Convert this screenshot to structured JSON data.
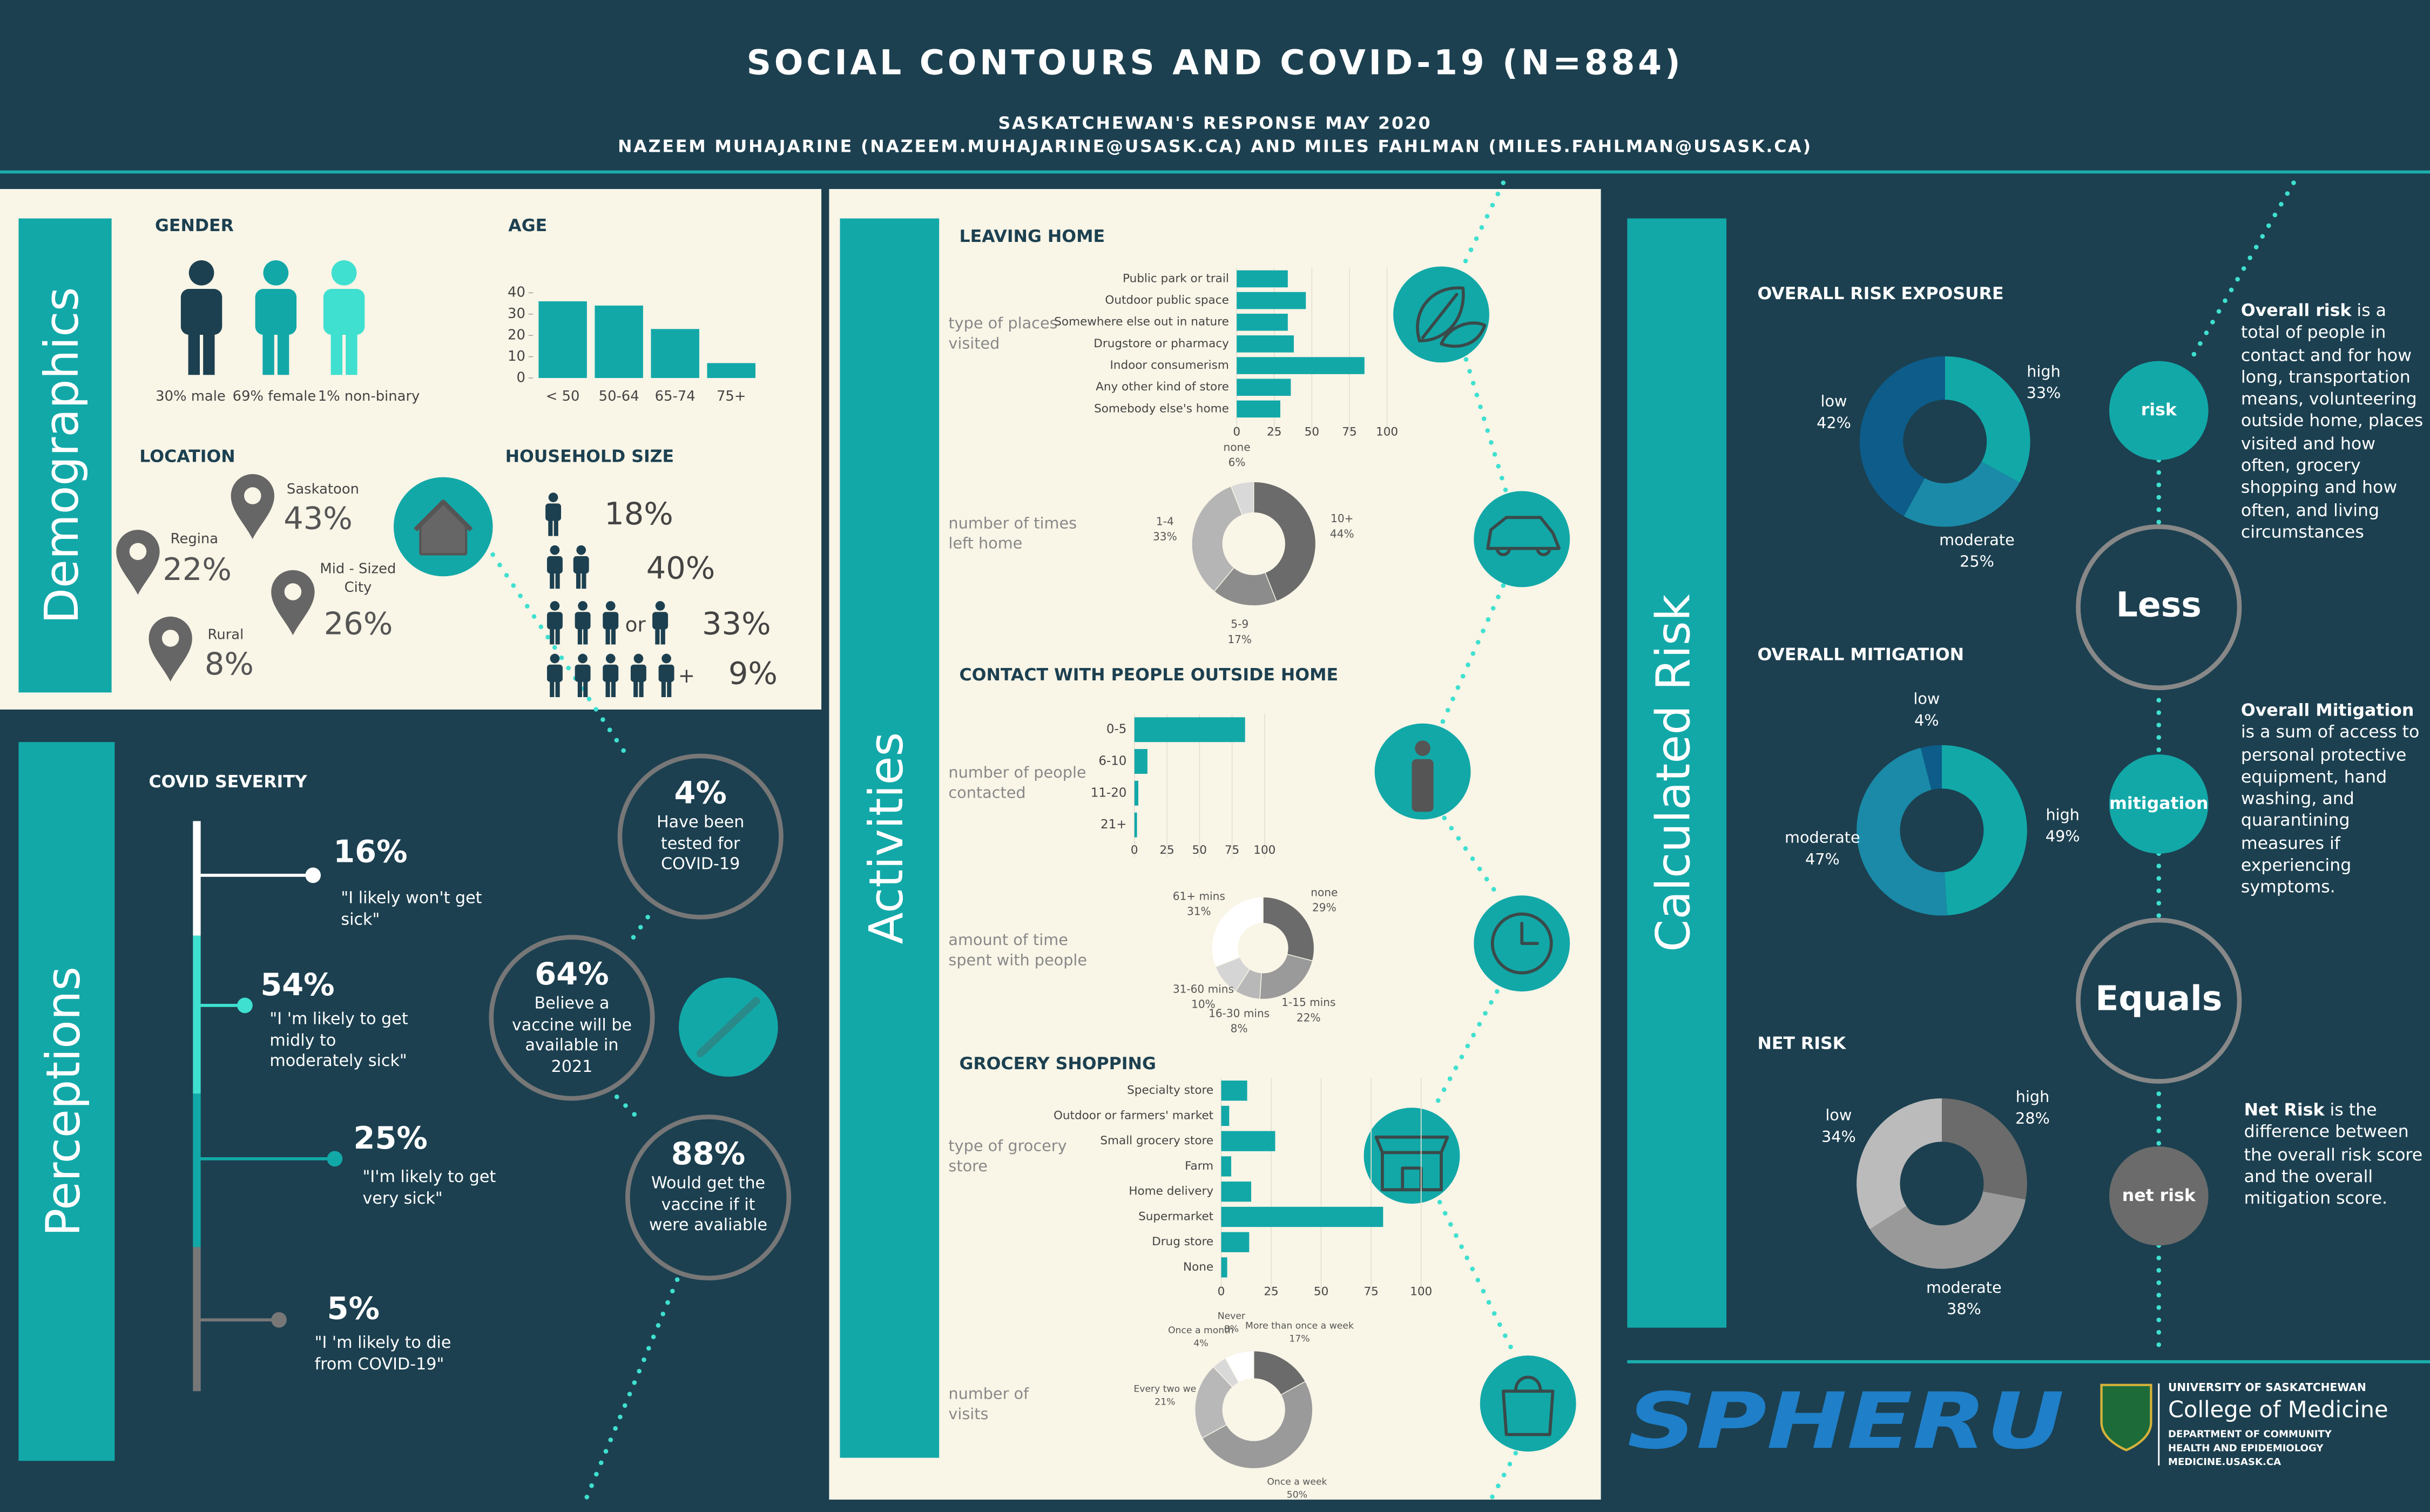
{
  "header": {
    "title": "SOCIAL CONTOURS AND COVID-19 (N=884)",
    "subtitle": "SASKATCHEWAN'S RESPONSE MAY 2020",
    "authors": "NAZEEM MUHAJARINE (NAZEEM.MUHAJARINE@USASK.CA) AND MILES FAHLMAN (MILES.FAHLMAN@USASK.CA)"
  },
  "demographics": {
    "label": "Demographics",
    "gender": {
      "heading": "GENDER",
      "items": [
        "30% male",
        "69% female",
        "1% non-binary"
      ]
    },
    "location": {
      "heading": "LOCATION",
      "items": [
        {
          "name": "Saskatoon",
          "value": "43%"
        },
        {
          "name": "Regina",
          "value": "22%"
        },
        {
          "name": "Mid - Sized City",
          "value": "26%"
        },
        {
          "name": "Rural",
          "value": "8%"
        }
      ]
    },
    "household": {
      "heading": "HOUSEHOLD SIZE",
      "connector": "or",
      "plus": "+",
      "items": [
        "18%",
        "40%",
        "33%",
        "9%"
      ]
    }
  },
  "perceptions": {
    "label": "Perceptions",
    "heading": "COVID SEVERITY",
    "severity": [
      {
        "value": "16%",
        "quote": "\"I likely won't get sick\""
      },
      {
        "value": "54%",
        "quote": "\"I 'm likely to get midly to moderately sick\""
      },
      {
        "value": "25%",
        "quote": "\"I'm likely to get very sick\""
      },
      {
        "value": "5%",
        "quote": "\"I 'm likely to die from COVID-19\""
      }
    ],
    "facts": [
      {
        "value": "4%",
        "text": "Have been tested for COVID-19"
      },
      {
        "value": "64%",
        "text": "Believe a vaccine will be available in 2021"
      },
      {
        "value": "88%",
        "text": "Would get the vaccine if it were avaliable"
      }
    ]
  },
  "activities": {
    "label": "Activities",
    "sections": [
      "LEAVING HOME",
      "CONTACT WITH PEOPLE OUTSIDE HOME",
      "GROCERY SHOPPING"
    ]
  },
  "risk": {
    "label": "Calculated Risk",
    "equation": [
      "risk",
      "Less",
      "mitigation",
      "Equals",
      "net risk"
    ],
    "notes": [
      {
        "term": "Overall risk",
        "text": " is a total of people in contact and for how long, transportation means, volunteering outside home, places visited and how often, grocery shopping and how often, and living circumstances"
      },
      {
        "term": "Overall Mitigation",
        "text": " is a sum of access to personal protective equipment, hand washing, and quarantining measures if experiencing symptoms."
      },
      {
        "term": "Net Risk",
        "text": " is the difference between the overall risk score and the overall mitigation score."
      }
    ]
  },
  "footer": {
    "logo": "SPHERU",
    "university": "UNIVERSITY OF SASKATCHEWAN",
    "college": "College of Medicine",
    "department": [
      "DEPARTMENT OF COMMUNITY",
      "HEALTH AND EPIDEMIOLOGY"
    ],
    "website": "MEDICINE.USASK.CA"
  },
  "chart_data": [
    {
      "type": "bar",
      "title": "AGE",
      "categories": [
        "< 50",
        "50-64",
        "65-74",
        "75+"
      ],
      "values": [
        36,
        34,
        23,
        7
      ],
      "color": "#12a8a8",
      "ylim": [
        0,
        40
      ],
      "yticks": [
        0,
        10,
        20,
        30,
        40
      ]
    },
    {
      "type": "barh",
      "ylabel": "type of places visited",
      "categories": [
        "Public park or trail",
        "Outdoor public space",
        "Somewhere else out in nature",
        "Drugstore or pharmacy",
        "Indoor consumerism",
        "Any other kind of store",
        "Somebody else's home"
      ],
      "values": [
        34,
        46,
        34,
        38,
        85,
        36,
        29
      ],
      "color": "#12a8a8",
      "xlim": [
        0,
        100
      ],
      "xticks": [
        0,
        25,
        50,
        75,
        100
      ],
      "grid": true
    },
    {
      "type": "donut",
      "label": "number of times left home",
      "categories": [
        "10+",
        "5-9",
        "1-4",
        "none"
      ],
      "values": [
        44,
        17,
        33,
        6
      ],
      "value_labels": [
        "44%",
        "17%",
        "33%",
        "6%"
      ],
      "colors": [
        "#6b6b6b",
        "#8c8c8c",
        "#b5b5b5",
        "#d9d9d9"
      ]
    },
    {
      "type": "barh",
      "ylabel": "number of people contacted",
      "categories": [
        "0-5",
        "6-10",
        "11-20",
        "21+"
      ],
      "values": [
        85,
        10,
        3,
        2
      ],
      "color": "#12a8a8",
      "xlim": [
        0,
        100
      ],
      "xticks": [
        0,
        25,
        50,
        75,
        100
      ],
      "grid": true
    },
    {
      "type": "donut",
      "label": "amount of time spent with people",
      "categories": [
        "none",
        "1-15 mins",
        "16-30 mins",
        "31-60 mins",
        "61+ mins"
      ],
      "values": [
        29,
        22,
        8,
        10,
        31
      ],
      "value_labels": [
        "29%",
        "22%",
        "8%",
        "10%",
        "31%"
      ],
      "colors": [
        "#6b6b6b",
        "#9a9a9a",
        "#b8b8b8",
        "#d5d5d5",
        "#ffffff"
      ]
    },
    {
      "type": "barh",
      "ylabel": "type of grocery store",
      "categories": [
        "Specialty store",
        "Outdoor or farmers' market",
        "Small grocery store",
        "Farm",
        "Home delivery",
        "Supermarket",
        "Drug store",
        "None"
      ],
      "values": [
        13,
        4,
        27,
        5,
        15,
        81,
        14,
        3
      ],
      "color": "#12a8a8",
      "xlim": [
        0,
        100
      ],
      "xticks": [
        0,
        25,
        50,
        75,
        100
      ],
      "grid": true
    },
    {
      "type": "donut",
      "label": "number of visits",
      "categories": [
        "More than once a week",
        "Once a week",
        "Every two we",
        "Once a month",
        "Never"
      ],
      "values": [
        17,
        50,
        21,
        4,
        8
      ],
      "value_labels": [
        "17%",
        "50%",
        "21%",
        "4%",
        "8%"
      ],
      "colors": [
        "#6b6b6b",
        "#9a9a9a",
        "#b8b8b8",
        "#d9d9d9",
        "#ffffff"
      ]
    },
    {
      "type": "donut",
      "title": "OVERALL RISK EXPOSURE",
      "categories": [
        "high",
        "moderate",
        "low"
      ],
      "values": [
        33,
        25,
        42
      ],
      "value_labels": [
        "33%",
        "25%",
        "42%"
      ],
      "colors": [
        "#12a8a8",
        "#1a8aa8",
        "#0d5c8a"
      ]
    },
    {
      "type": "donut",
      "title": "OVERALL MITIGATION",
      "categories": [
        "high",
        "moderate",
        "low"
      ],
      "values": [
        49,
        47,
        4
      ],
      "value_labels": [
        "49%",
        "47%",
        "4%"
      ],
      "colors": [
        "#12a8a8",
        "#1a8aa8",
        "#0d5c8a"
      ]
    },
    {
      "type": "donut",
      "title": "NET RISK",
      "categories": [
        "high",
        "moderate",
        "low"
      ],
      "values": [
        28,
        38,
        34
      ],
      "value_labels": [
        "28%",
        "38%",
        "34%"
      ],
      "colors": [
        "#6b6b6b",
        "#999999",
        "#bbbbbb"
      ]
    }
  ]
}
